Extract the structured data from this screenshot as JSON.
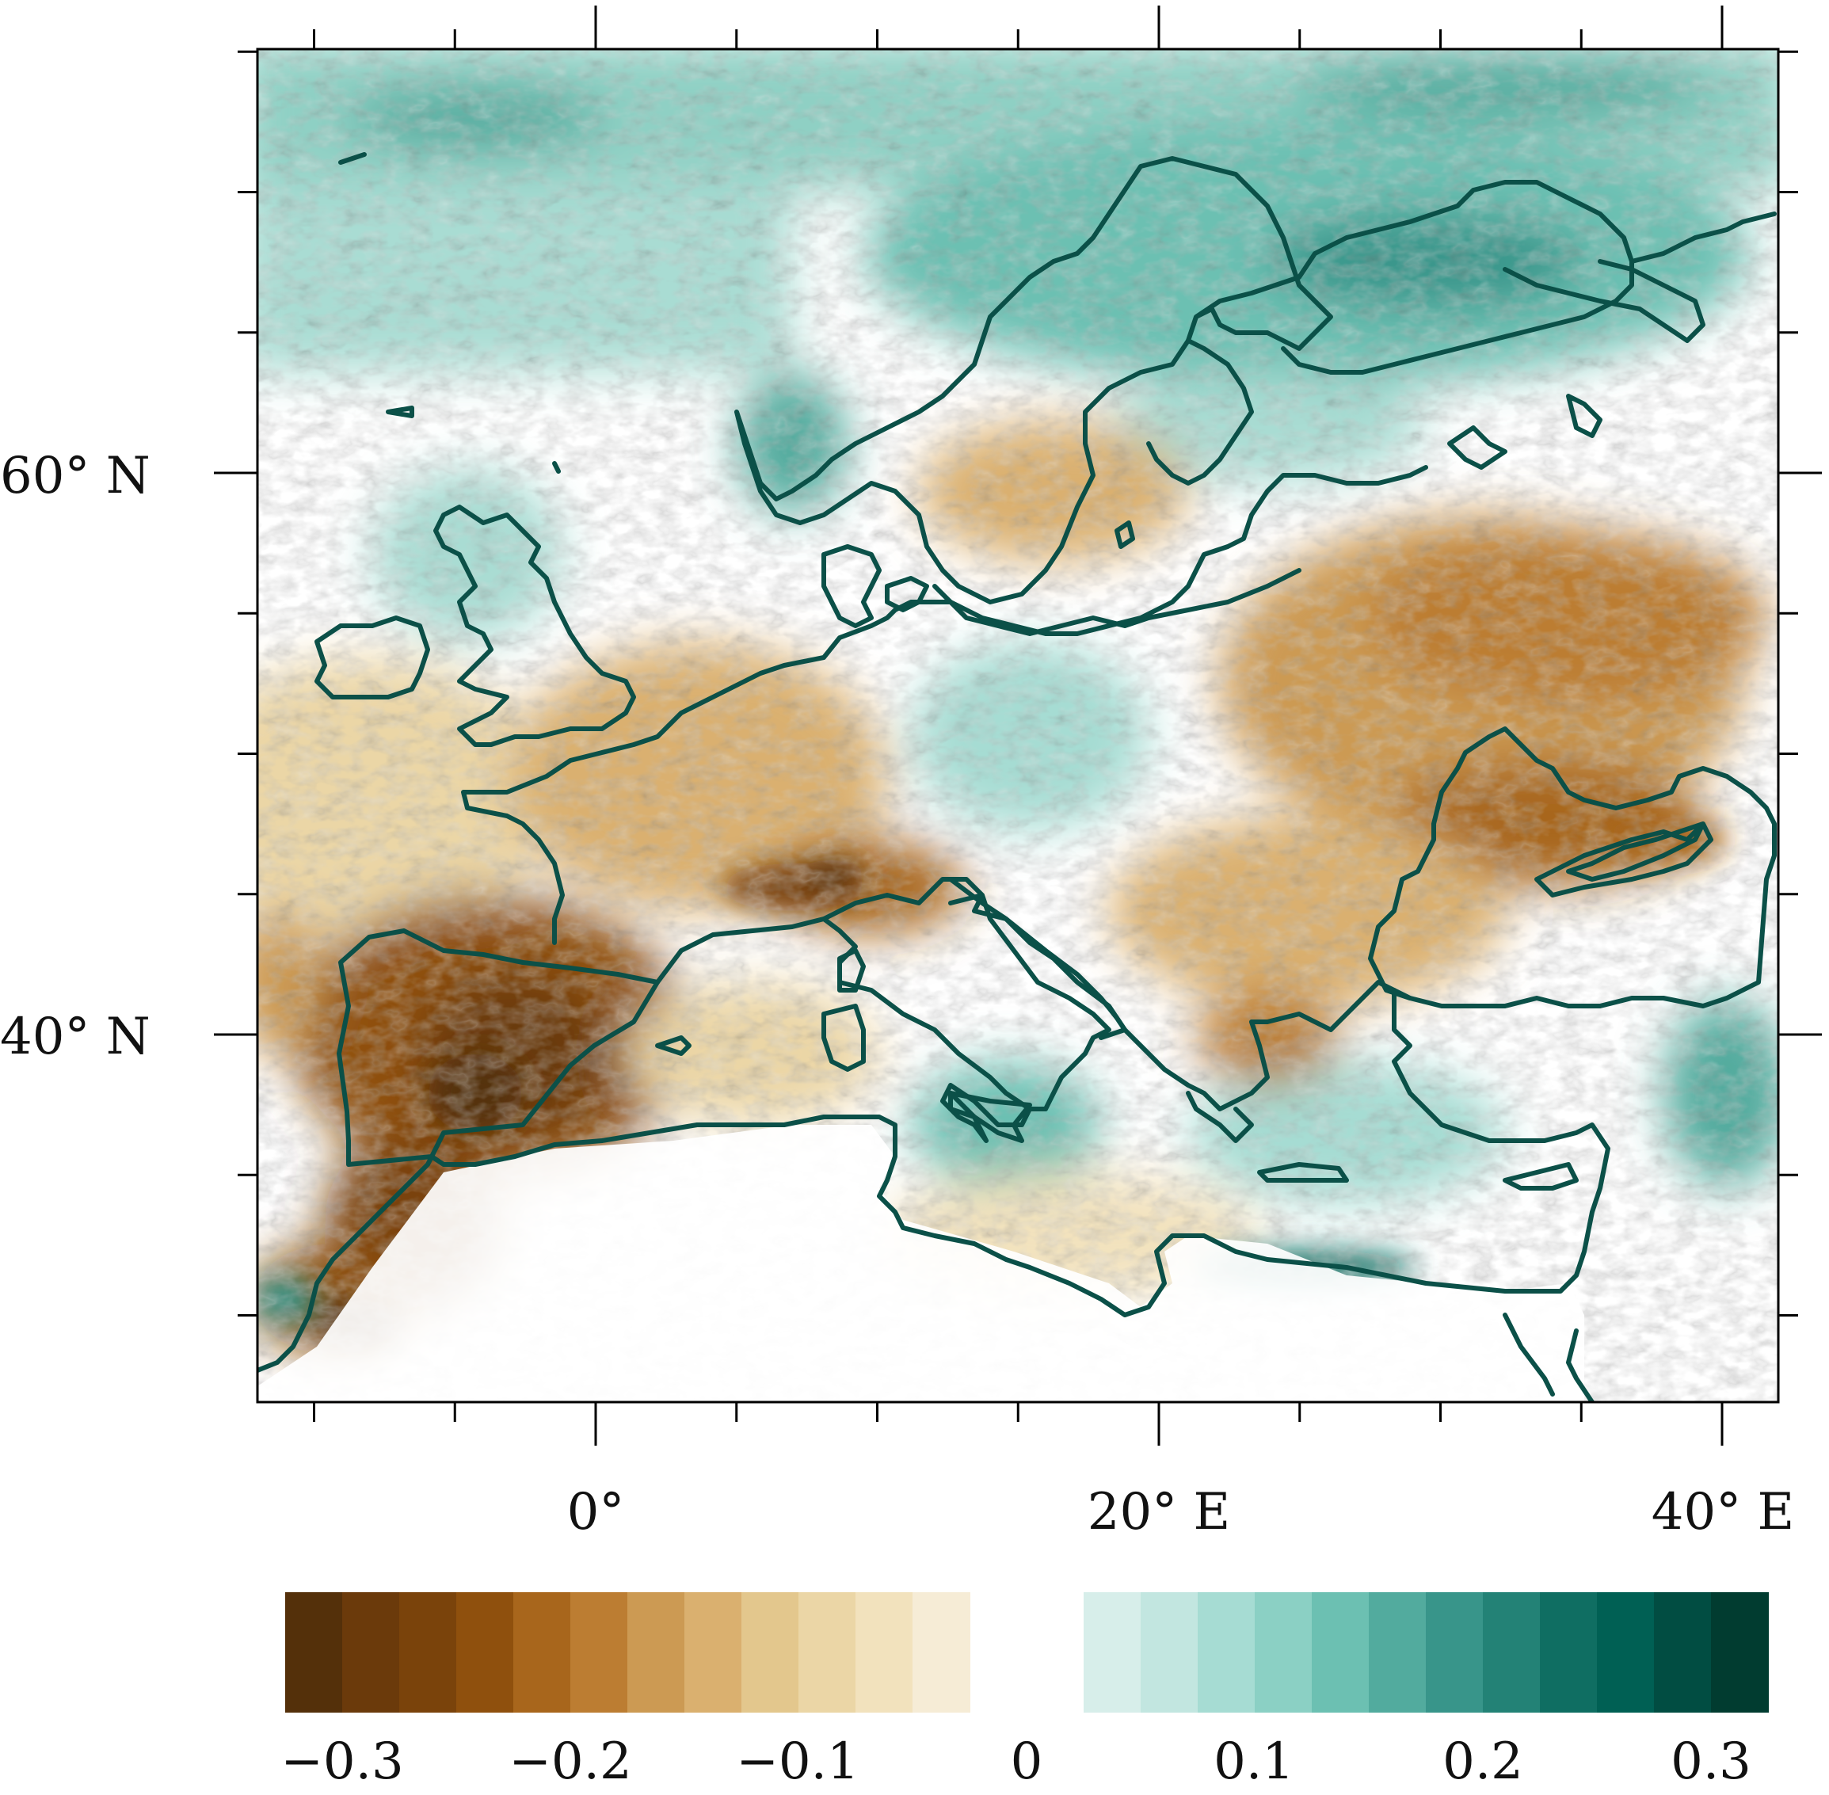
{
  "map": {
    "region": "Europe",
    "axes": {
      "lat_labels": [
        {
          "value": 60,
          "text": "60° N"
        },
        {
          "value": 40,
          "text": "40° N"
        }
      ],
      "lon_labels": [
        {
          "value": 0,
          "text": "0°"
        },
        {
          "value": 20,
          "text": "20° E"
        },
        {
          "value": 40,
          "text": "40° E"
        }
      ],
      "lon_range": [
        -12,
        42
      ],
      "lat_range": [
        28,
        75
      ]
    },
    "colors": {
      "coastline": "#0b5048",
      "frame": "#000000"
    }
  },
  "colorbar": {
    "tick_labels": [
      "−0.3",
      "−0.2",
      "−0.1",
      "0",
      "0.1",
      "0.2",
      "0.3"
    ],
    "negative_colors": [
      "#54300a",
      "#6b3a0b",
      "#7a430b",
      "#8f500d",
      "#a8661c",
      "#bc7d32",
      "#cc9a53",
      "#dab06f",
      "#e3c78d",
      "#ebd6a6",
      "#f2e2bd",
      "#f6ecd6"
    ],
    "positive_colors": [
      "#d7eeea",
      "#c2e6e0",
      "#a6dcd3",
      "#8bd0c4",
      "#6cc0b2",
      "#52ab9e",
      "#38958a",
      "#238276",
      "#0f6e62",
      "#006054",
      "#014d42",
      "#013c30"
    ]
  }
}
